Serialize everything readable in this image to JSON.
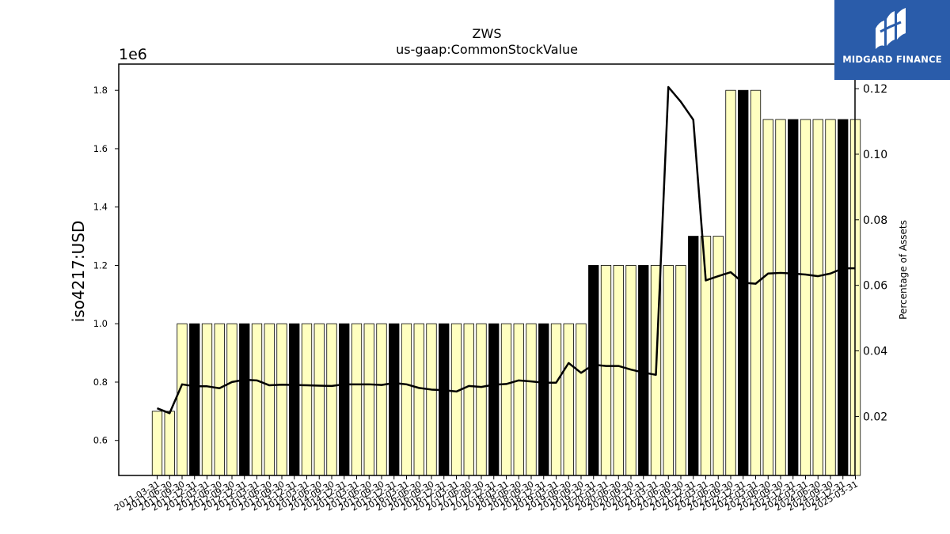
{
  "logo": {
    "text": "MIDGARD FINANCE",
    "bg_color": "#2a5caa"
  },
  "chart_data": {
    "type": "bar",
    "title": "ZWS",
    "subtitle": "us-gaap:CommonStockValue",
    "ylabel": "iso4217:USD",
    "y2label": "Percentage of Assets",
    "y_multiplier_label": "1e6",
    "ylim": [
      480000,
      1890000
    ],
    "y2lim": [
      0.002,
      0.1275
    ],
    "yticks": [
      0.6,
      0.8,
      1.0,
      1.2,
      1.4,
      1.6,
      1.8
    ],
    "y2ticks": [
      0.02,
      0.04,
      0.06,
      0.08,
      0.1,
      0.12
    ],
    "bar_colors": {
      "quarter": "#ffffc0",
      "annual": "#000000"
    },
    "line_color": "#000000",
    "grid": false,
    "categories": [
      "2011-03-31",
      "2011-06-30",
      "2011-09-30",
      "2011-12-31",
      "2012-03-31",
      "2012-06-30",
      "2012-09-30",
      "2012-12-31",
      "2013-03-31",
      "2013-06-30",
      "2013-09-30",
      "2013-12-31",
      "2014-03-31",
      "2014-06-30",
      "2014-09-30",
      "2014-12-31",
      "2015-03-31",
      "2015-06-30",
      "2015-09-30",
      "2015-12-31",
      "2016-03-31",
      "2016-06-30",
      "2016-09-30",
      "2016-12-31",
      "2017-03-31",
      "2017-06-30",
      "2017-09-30",
      "2017-12-31",
      "2018-03-31",
      "2018-06-30",
      "2018-09-30",
      "2018-12-31",
      "2019-03-31",
      "2019-06-30",
      "2019-09-30",
      "2019-12-31",
      "2020-03-31",
      "2020-06-30",
      "2020-09-30",
      "2020-12-31",
      "2021-03-31",
      "2021-06-30",
      "2021-09-30",
      "2021-12-31",
      "2022-03-31",
      "2022-06-30",
      "2022-09-30",
      "2022-12-31",
      "2023-03-31",
      "2023-06-30",
      "2023-09-30",
      "2023-12-31",
      "2024-03-31",
      "2024-06-30",
      "2024-09-30",
      "2024-12-31",
      "2025-03-31"
    ],
    "tick_labels": [
      "2011-03-31",
      "2011-06-30",
      "2011-09-30",
      "2011-12-31",
      "2012-03-31",
      "2012-06-30",
      "2012-09-30",
      "2012-12-31",
      "2013-03-31",
      "2013-06-30",
      "2013-09-30",
      "2013-12-31",
      "2014-03-31",
      "2014-06-30",
      "2014-09-30",
      "2014-12-31",
      "2015-03-31",
      "2015-06-30",
      "2015-09-30",
      "2015-12-31",
      "2016-03-31",
      "2016-06-30",
      "2016-09-30",
      "2016-12-31",
      "2017-03-31",
      "2017-06-30",
      "2017-09-30",
      "2017-12-31",
      "2018-03-31",
      "2018-06-30",
      "2018-09-30",
      "2018-12-31",
      "2019-03-31",
      "2019-06-30",
      "2019-09-30",
      "2019-12-31",
      "2020-03-31",
      "2020-06-30",
      "2020-09-30",
      "2020-12-31",
      "2021-03-31",
      "2021-06-30",
      "2021-09-30",
      "2021-12-31",
      "2022-03-31",
      "2022-06-30",
      "2022-09-30",
      "2022-12-31",
      "2023-03-31",
      "2023-06-30",
      "2023-09-30",
      "2023-12-31",
      "2024-03-31",
      "2024-06-30",
      "2024-09-30",
      "2024-12-31",
      "2025-03-31"
    ],
    "series": [
      {
        "values": [
          700000,
          700000,
          1000000,
          1000000,
          1000000,
          1000000,
          1000000,
          1000000,
          1000000,
          1000000,
          1000000,
          1000000,
          1000000,
          1000000,
          1000000,
          1000000,
          1000000,
          1000000,
          1000000,
          1000000,
          1000000,
          1000000,
          1000000,
          1000000,
          1000000,
          1000000,
          1000000,
          1000000,
          1000000,
          1000000,
          1000000,
          1000000,
          1000000,
          1000000,
          1000000,
          1200000,
          1200000,
          1200000,
          1200000,
          1200000,
          1200000,
          1200000,
          1200000,
          1300000,
          1300000,
          1300000,
          1800000,
          1800000,
          1800000,
          1700000,
          1700000,
          1700000,
          1700000,
          1700000,
          1700000,
          1700000,
          1700000
        ],
        "annual": [
          false,
          false,
          false,
          true,
          false,
          false,
          false,
          true,
          false,
          false,
          false,
          true,
          false,
          false,
          false,
          true,
          false,
          false,
          false,
          true,
          false,
          false,
          false,
          true,
          false,
          false,
          false,
          true,
          false,
          false,
          false,
          true,
          false,
          false,
          false,
          true,
          false,
          false,
          false,
          true,
          false,
          false,
          false,
          true,
          false,
          false,
          false,
          true,
          false,
          false,
          false,
          true,
          false,
          false,
          false,
          true,
          false
        ]
      },
      {
        "axis": "right",
        "values": [
          0.0225,
          0.021,
          0.0298,
          0.0292,
          0.0292,
          0.0286,
          0.0305,
          0.0312,
          0.031,
          0.0295,
          0.0297,
          0.0296,
          0.0295,
          0.0294,
          0.0293,
          0.0298,
          0.0298,
          0.0298,
          0.0296,
          0.0302,
          0.0298,
          0.0287,
          0.0282,
          0.028,
          0.0276,
          0.0293,
          0.029,
          0.0297,
          0.0299,
          0.031,
          0.0307,
          0.0303,
          0.0303,
          0.0363,
          0.0333,
          0.0358,
          0.0354,
          0.0354,
          0.0343,
          0.0334,
          0.0327,
          0.1205,
          0.116,
          0.1105,
          0.0615,
          0.0628,
          0.064,
          0.0608,
          0.0605,
          0.0636,
          0.0638,
          0.0636,
          0.0633,
          0.0628,
          0.0636,
          0.0652,
          0.0652
        ]
      }
    ]
  }
}
